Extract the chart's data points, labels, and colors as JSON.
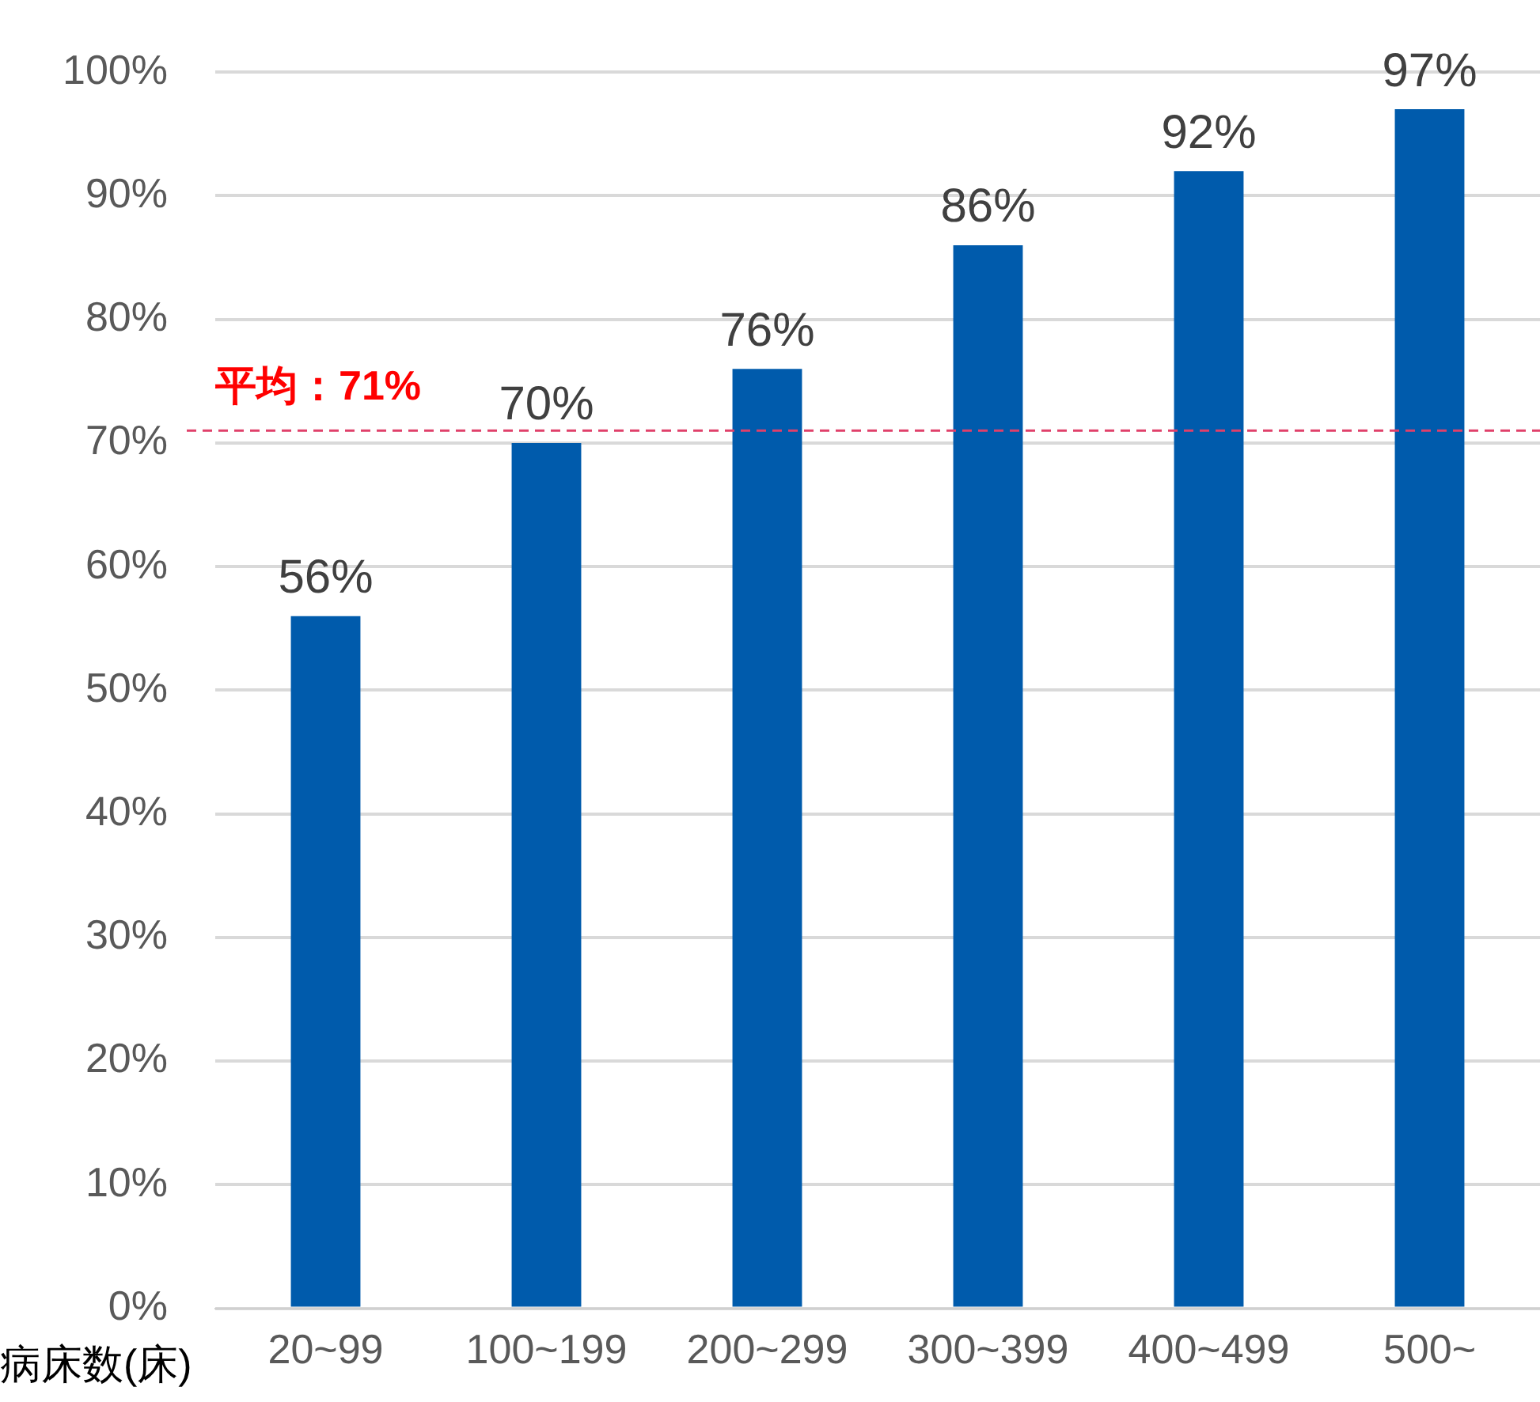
{
  "chart_data": {
    "type": "bar",
    "xlabel": "病床数(床)",
    "categories": [
      "20~99",
      "100~199",
      "200~299",
      "300~399",
      "400~499",
      "500~"
    ],
    "values": [
      56,
      70,
      76,
      86,
      92,
      97
    ],
    "color": "#005bac",
    "value_labels": [
      "56%",
      "70%",
      "76%",
      "86%",
      "92%",
      "97%"
    ],
    "ylim": [
      0,
      100
    ],
    "yticks": [
      {
        "value": 0,
        "label": "0%"
      },
      {
        "value": 10,
        "label": "10%"
      },
      {
        "value": 20,
        "label": "20%"
      },
      {
        "value": 30,
        "label": "30%"
      },
      {
        "value": 40,
        "label": "40%"
      },
      {
        "value": 50,
        "label": "50%"
      },
      {
        "value": 60,
        "label": "60%"
      },
      {
        "value": 70,
        "label": "70%"
      },
      {
        "value": 80,
        "label": "80%"
      },
      {
        "value": 90,
        "label": "90%"
      },
      {
        "value": 100,
        "label": "100%"
      }
    ],
    "ref_lines": [
      {
        "axis": "y",
        "value": 71,
        "label": "平均：71%",
        "color": "#e0406a",
        "line_style": "dashed"
      }
    ],
    "grid": "y",
    "legend": false
  }
}
